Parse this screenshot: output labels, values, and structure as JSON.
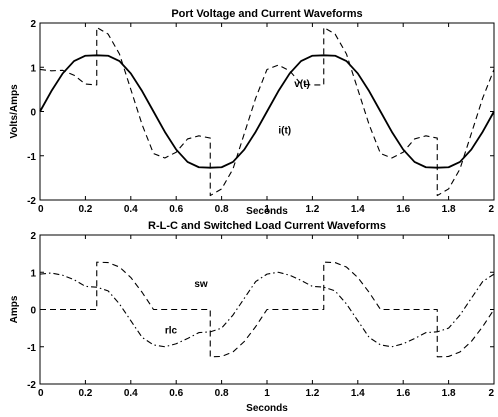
{
  "chart_data": [
    {
      "type": "line",
      "title": "Port Voltage and Current Waveforms",
      "xlabel": "Seconds",
      "ylabel": "Volts/Amps",
      "xlim": [
        0,
        2
      ],
      "ylim": [
        -2,
        2
      ],
      "x_ticks": [
        "0",
        "0.2",
        "0.4",
        "0.6",
        "0.8",
        "1",
        "1.2",
        "1.4",
        "1.6",
        "1.8",
        "2"
      ],
      "y_ticks": [
        "2",
        "1",
        "0",
        "-1",
        "-2"
      ],
      "grid": false,
      "series": [
        {
          "name": "v(t)",
          "style": "solid",
          "color": "#000000",
          "x": [
            0,
            0.05,
            0.1,
            0.15,
            0.2,
            0.25,
            0.3,
            0.35,
            0.4,
            0.45,
            0.5,
            0.55,
            0.6,
            0.65,
            0.7,
            0.75,
            0.8,
            0.85,
            0.9,
            0.95,
            1.0,
            1.05,
            1.1,
            1.15,
            1.2,
            1.25,
            1.3,
            1.35,
            1.4,
            1.45,
            1.5,
            1.55,
            1.6,
            1.65,
            1.7,
            1.75,
            1.8,
            1.85,
            1.9,
            1.95,
            2.0
          ],
          "y": [
            0,
            0.46,
            0.86,
            1.14,
            1.26,
            1.27,
            1.26,
            1.14,
            0.86,
            0.46,
            0,
            -0.46,
            -0.86,
            -1.14,
            -1.26,
            -1.27,
            -1.26,
            -1.14,
            -0.86,
            -0.46,
            0,
            0.46,
            0.86,
            1.14,
            1.26,
            1.27,
            1.26,
            1.14,
            0.86,
            0.46,
            0,
            -0.46,
            -0.86,
            -1.14,
            -1.26,
            -1.27,
            -1.26,
            -1.14,
            -0.86,
            -0.46,
            0
          ]
        },
        {
          "name": "i(t)",
          "style": "dashed",
          "color": "#000000",
          "x": [
            0,
            0.05,
            0.1,
            0.15,
            0.2,
            0.25,
            0.25,
            0.3,
            0.35,
            0.4,
            0.45,
            0.5,
            0.55,
            0.6,
            0.65,
            0.7,
            0.75,
            0.75,
            0.8,
            0.85,
            0.9,
            0.95,
            1.0,
            1.05,
            1.1,
            1.15,
            1.2,
            1.25,
            1.25,
            1.3,
            1.35,
            1.4,
            1.45,
            1.5,
            1.55,
            1.6,
            1.65,
            1.7,
            1.75,
            1.75,
            1.8,
            1.85,
            1.9,
            1.95,
            2.0
          ],
          "y": [
            0.95,
            0.92,
            0.93,
            0.82,
            0.62,
            0.6,
            1.9,
            1.75,
            1.3,
            0.5,
            -0.3,
            -0.95,
            -1.05,
            -0.92,
            -0.62,
            -0.55,
            -0.6,
            -1.9,
            -1.75,
            -1.3,
            -0.5,
            0.3,
            0.95,
            1.05,
            0.92,
            0.62,
            0.6,
            0.6,
            1.9,
            1.75,
            1.3,
            0.5,
            -0.3,
            -0.95,
            -1.05,
            -0.92,
            -0.62,
            -0.55,
            -0.6,
            -1.9,
            -1.75,
            -1.3,
            -0.5,
            0.3,
            0.95
          ]
        }
      ],
      "annotations": [
        {
          "text": "v(t)",
          "x": 1.12,
          "y": 0.55
        },
        {
          "text": "i(t)",
          "x": 1.05,
          "y": -0.5
        }
      ]
    },
    {
      "type": "line",
      "title": "R-L-C and Switched Load Current Waveforms",
      "xlabel": "Seconds",
      "ylabel": "Amps",
      "xlim": [
        0,
        2
      ],
      "ylim": [
        -2,
        2
      ],
      "x_ticks": [
        "0",
        "0.2",
        "0.4",
        "0.6",
        "0.8",
        "1",
        "1.2",
        "1.4",
        "1.6",
        "1.8",
        "2"
      ],
      "y_ticks": [
        "2",
        "1",
        "0",
        "-1",
        "-2"
      ],
      "grid": false,
      "series": [
        {
          "name": "sw",
          "style": "dashed",
          "color": "#000000",
          "x": [
            0,
            0.25,
            0.25,
            0.3,
            0.35,
            0.4,
            0.45,
            0.5,
            0.5,
            0.75,
            0.75,
            0.8,
            0.85,
            0.9,
            0.95,
            1.0,
            1.0,
            1.25,
            1.25,
            1.3,
            1.35,
            1.4,
            1.45,
            1.5,
            1.5,
            1.75,
            1.75,
            1.8,
            1.85,
            1.9,
            1.95,
            2.0
          ],
          "y": [
            0,
            0,
            1.27,
            1.26,
            1.14,
            0.86,
            0.46,
            0,
            0,
            0,
            -1.27,
            -1.26,
            -1.14,
            -0.86,
            -0.46,
            0,
            0,
            0,
            1.27,
            1.26,
            1.14,
            0.86,
            0.46,
            0,
            0,
            0,
            -1.27,
            -1.26,
            -1.14,
            -0.86,
            -0.46,
            0
          ]
        },
        {
          "name": "rlc",
          "style": "dashdot",
          "color": "#000000",
          "x": [
            0,
            0.05,
            0.1,
            0.15,
            0.2,
            0.25,
            0.3,
            0.35,
            0.4,
            0.45,
            0.5,
            0.55,
            0.6,
            0.65,
            0.7,
            0.75,
            0.8,
            0.85,
            0.9,
            0.95,
            1.0,
            1.05,
            1.1,
            1.15,
            1.2,
            1.25,
            1.3,
            1.35,
            1.4,
            1.45,
            1.5,
            1.55,
            1.6,
            1.65,
            1.7,
            1.75,
            1.8,
            1.85,
            1.9,
            1.95,
            2.0
          ],
          "y": [
            0.95,
            0.98,
            0.92,
            0.8,
            0.62,
            0.6,
            0.5,
            0.15,
            -0.3,
            -0.75,
            -0.95,
            -1.0,
            -0.92,
            -0.78,
            -0.62,
            -0.6,
            -0.5,
            -0.15,
            0.3,
            0.75,
            0.95,
            1.0,
            0.92,
            0.78,
            0.62,
            0.6,
            0.5,
            0.15,
            -0.3,
            -0.75,
            -0.95,
            -1.0,
            -0.92,
            -0.78,
            -0.62,
            -0.6,
            -0.5,
            -0.15,
            0.3,
            0.75,
            0.95
          ]
        }
      ],
      "annotations": [
        {
          "text": "sw",
          "x": 0.68,
          "y": 0.6
        },
        {
          "text": "rlc",
          "x": 0.55,
          "y": -0.65
        }
      ]
    }
  ]
}
